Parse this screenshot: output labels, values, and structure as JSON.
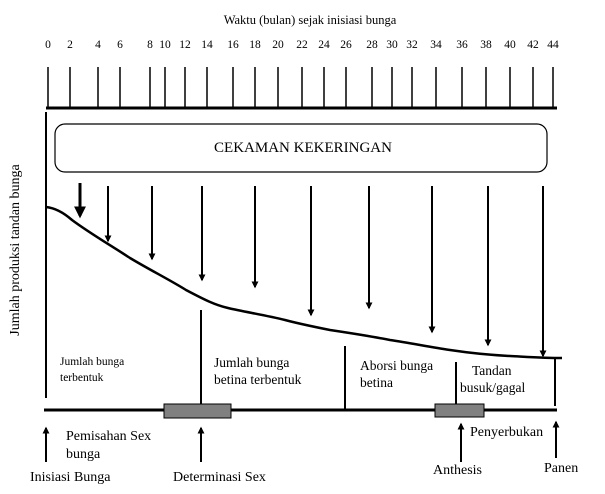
{
  "header": {
    "title": "Waktu  (bulan) sejak inisiasi bunga"
  },
  "timeline": {
    "ticks": [
      "0",
      "2",
      "4",
      "6",
      "8",
      "10",
      "12",
      "14",
      "16",
      "18",
      "20",
      "22",
      "24",
      "26",
      "28",
      "30",
      "32",
      "34",
      "36",
      "38",
      "40",
      "42",
      "44"
    ]
  },
  "y_label": "Jumlah produksi tandan bunga",
  "stress_box": {
    "label": "CEKAMAN KEKERINGAN"
  },
  "phases": {
    "p1": {
      "line1": "Jumlah bunga",
      "line2": "terbentuk"
    },
    "p2": {
      "line1": "Jumlah bunga",
      "line2": "betina terbentuk"
    },
    "p3": {
      "line1": "Aborsi bunga",
      "line2": "betina"
    },
    "p4": {
      "line1": "Tandan",
      "line2": "busuk/gagal"
    }
  },
  "events": {
    "pemisahan": {
      "line1": "Pemisahan Sex",
      "line2": "bunga"
    },
    "inisiasi": "Inisiasi Bunga",
    "determinasi": "Determinasi Sex",
    "penyerbukan": "Penyerbukan",
    "anthesis": "Anthesis",
    "panen": "Panen"
  },
  "colors": {
    "line": "#000000",
    "bar_fill": "#808080",
    "background": "#ffffff"
  }
}
